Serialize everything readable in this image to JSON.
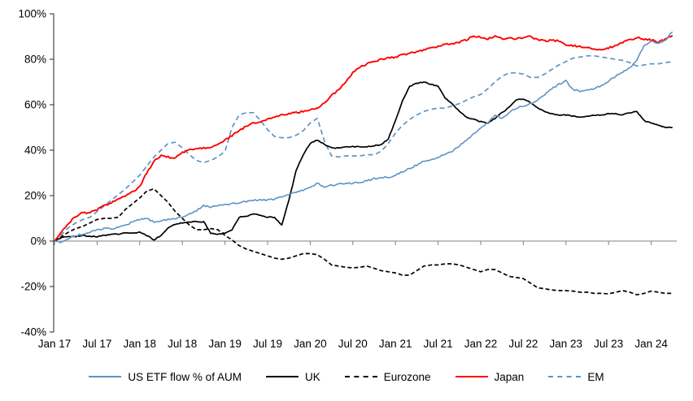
{
  "chart_data": {
    "type": "line",
    "title": "",
    "x_axis": {
      "unit": "month",
      "start": "Jan 2017",
      "end": "Apr 2024",
      "tick_labels": [
        "Jan 17",
        "Jul 17",
        "Jan 18",
        "Jul 18",
        "Jan 19",
        "Jul 19",
        "Jan 20",
        "Jul 20",
        "Jan 21",
        "Jul 21",
        "Jan 22",
        "Jul 22",
        "Jan 23",
        "Jul 23",
        "Jan 24"
      ]
    },
    "y_axis": {
      "range": [
        -40,
        100
      ],
      "tick_values": [
        100,
        80,
        60,
        40,
        20,
        0,
        -20,
        -40
      ],
      "tick_labels": [
        "100%",
        "80%",
        "60%",
        "40%",
        "20%",
        "0%",
        "-20%",
        "-40%"
      ],
      "format": "percent"
    },
    "grid": "zero-line-only",
    "legend_position": "bottom",
    "colors": {
      "axis": "#262626",
      "zero_line": "#808080",
      "blue": "#5E93C5",
      "red": "#FF0000",
      "black": "#000000"
    },
    "series": [
      {
        "name": "US ETF flow % of AUM",
        "color": "#5E93C5",
        "style": "solid",
        "values": [
          0,
          -0.5,
          1,
          2.5,
          3,
          4,
          5,
          5.5,
          5.5,
          6,
          7,
          8.5,
          9.5,
          10,
          8.5,
          9,
          9.5,
          10,
          10.5,
          12,
          13.5,
          15.5,
          15,
          15.5,
          16,
          16.5,
          17,
          17.5,
          18,
          18,
          18,
          18.5,
          19.5,
          20.5,
          21.5,
          22.5,
          23.5,
          25.5,
          23.5,
          24.5,
          25,
          25.5,
          25.5,
          26,
          26.5,
          27.5,
          28,
          28,
          29,
          30.5,
          32,
          33.5,
          35,
          36,
          36.5,
          38.5,
          39.5,
          42,
          44.5,
          47,
          49.5,
          52,
          55.5,
          54,
          56.5,
          58.5,
          59.5,
          60.5,
          62,
          64.5,
          67,
          69,
          70.5,
          66.5,
          66,
          66.5,
          67,
          68.5,
          70.5,
          72.5,
          74.5,
          76,
          80,
          86,
          88,
          87,
          88.5,
          92
        ]
      },
      {
        "name": "UK",
        "color": "#000000",
        "style": "solid",
        "values": [
          0,
          1.5,
          2,
          2,
          2.5,
          2,
          2,
          2.5,
          3,
          3,
          3.5,
          3.5,
          4,
          2.5,
          0.5,
          2.5,
          6,
          7.5,
          8,
          8.5,
          8.5,
          8.5,
          3.5,
          3,
          3.5,
          5,
          10.5,
          11,
          12,
          11.5,
          10.5,
          10.5,
          7,
          18,
          31,
          38,
          43,
          44.5,
          42.5,
          41,
          41,
          41.5,
          41.5,
          41.5,
          41.5,
          42,
          42.5,
          45,
          53,
          62,
          68,
          69.5,
          70,
          69,
          68,
          63,
          60.5,
          57,
          54.5,
          53.5,
          52.5,
          52,
          54,
          56.5,
          59,
          62,
          62.5,
          61,
          58.5,
          57,
          56,
          55.5,
          55.5,
          55,
          54.5,
          55,
          55.5,
          55.5,
          56,
          56,
          55.5,
          56.5,
          57,
          53,
          52,
          51,
          50,
          50
        ]
      },
      {
        "name": "Eurozone",
        "color": "#000000",
        "style": "dashed",
        "values": [
          0,
          2,
          4,
          5.5,
          6.5,
          8,
          9.5,
          10,
          10,
          10.5,
          14,
          16.5,
          19,
          22,
          23,
          20,
          17,
          13,
          10,
          7,
          5,
          5,
          5.5,
          5,
          2.5,
          0.5,
          -2,
          -3.5,
          -4.5,
          -5.5,
          -6.5,
          -7.5,
          -8,
          -7.5,
          -6.5,
          -5.5,
          -5.5,
          -6,
          -8,
          -10.5,
          -11,
          -11.5,
          -11.8,
          -11.5,
          -11,
          -12,
          -13,
          -13.5,
          -14,
          -15,
          -15,
          -13,
          -11,
          -10.5,
          -10.5,
          -10,
          -10,
          -10.5,
          -11.5,
          -12.5,
          -13.5,
          -12.5,
          -12.5,
          -14,
          -15.5,
          -16,
          -16.5,
          -18.5,
          -20.5,
          -21,
          -21.5,
          -21.8,
          -21.8,
          -22,
          -22.5,
          -22.5,
          -23,
          -23,
          -23.2,
          -22.5,
          -21.8,
          -22.5,
          -23.6,
          -23,
          -22,
          -22.5,
          -23,
          -23
        ]
      },
      {
        "name": "Japan",
        "color": "#FF0000",
        "style": "solid",
        "values": [
          0,
          4,
          8,
          11,
          12.5,
          12.5,
          14,
          15.5,
          17,
          18.5,
          20,
          21.5,
          24,
          30,
          35,
          37.5,
          37,
          36.5,
          39,
          40,
          40.5,
          41,
          41.5,
          42.5,
          44.5,
          46.5,
          48.5,
          50.5,
          52,
          52.5,
          53.5,
          54.5,
          55.5,
          56,
          56.5,
          57,
          58,
          58.5,
          61,
          64,
          66.5,
          70,
          74,
          76.5,
          78,
          79,
          80,
          80.5,
          81,
          82,
          82.5,
          83.5,
          84,
          85,
          85.5,
          86.5,
          87,
          87.5,
          88.5,
          90.5,
          89.5,
          89,
          90,
          89,
          89.5,
          89,
          89.5,
          90,
          88.5,
          88,
          88.5,
          88,
          86.5,
          86,
          85.5,
          85,
          84.5,
          84.5,
          85,
          86,
          87.5,
          88.5,
          89.5,
          89,
          88.5,
          87.5,
          89,
          90.5
        ]
      },
      {
        "name": "EM",
        "color": "#5E93C5",
        "style": "dashed",
        "values": [
          0,
          3,
          6,
          8,
          9.5,
          10.5,
          13,
          15.5,
          18,
          20.5,
          23,
          26,
          29,
          33,
          37,
          40,
          43,
          43.5,
          41,
          38,
          35.5,
          34.5,
          35.5,
          37,
          39.5,
          50,
          55.5,
          56.5,
          56.5,
          53,
          49,
          46,
          45.5,
          45.5,
          46.5,
          48.5,
          52,
          54,
          44,
          37.5,
          37,
          37.5,
          37.5,
          37.5,
          38,
          38,
          39.5,
          43,
          47.5,
          51,
          53.5,
          55.5,
          57,
          58,
          58.5,
          58.5,
          59.5,
          60.5,
          62,
          63.5,
          64.5,
          67,
          70,
          72.5,
          74,
          74,
          73.5,
          72,
          72,
          73.5,
          75.5,
          77.5,
          79,
          80.5,
          81,
          81.5,
          81.5,
          81,
          80.5,
          80,
          79.5,
          78.5,
          77,
          77.5,
          78,
          78,
          78.5,
          79
        ]
      }
    ]
  }
}
